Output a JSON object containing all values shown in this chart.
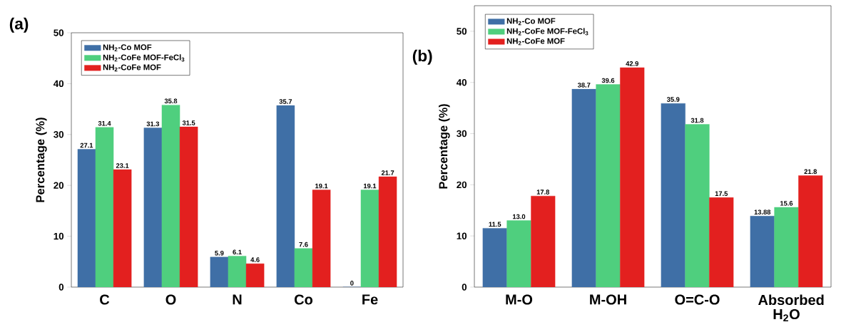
{
  "chart_data": [
    {
      "type": "bar",
      "title": "(a)",
      "ylabel": "Percentage (%)",
      "categories": [
        "C",
        "O",
        "N",
        "Co",
        "Fe"
      ],
      "series": [
        {
          "name": "NH$_{2}$-Co MOF",
          "color": "#3f6fa6",
          "values": [
            27.1,
            31.3,
            5.9,
            35.7,
            0
          ]
        },
        {
          "name": "NH$_{2}$-CoFe MOF-FeCl$_{3}$",
          "color": "#4fcf7e",
          "values": [
            31.4,
            35.8,
            6.1,
            7.6,
            19.1
          ]
        },
        {
          "name": "NH$_{2}$-CoFe MOF",
          "color": "#e3201f",
          "values": [
            23.1,
            31.5,
            4.6,
            19.1,
            21.7
          ]
        }
      ],
      "ylim": [
        0,
        50
      ],
      "yticks": [
        0,
        10,
        20,
        30,
        40,
        50
      ],
      "data_labels": true,
      "legend": "top left",
      "grid": false
    },
    {
      "type": "bar",
      "title": "(b)",
      "ylabel": "Percentage (%)",
      "categories": [
        "M-O",
        "M-OH",
        "O=C-O",
        "Absorbed H$_{2}$O"
      ],
      "series": [
        {
          "name": "NH$_{2}$-Co MOF",
          "color": "#3f6fa6",
          "values": [
            11.5,
            38.7,
            35.9,
            13.88
          ],
          "value_labels": [
            "11.5",
            "38.7",
            "35.9",
            "13.88"
          ]
        },
        {
          "name": "NH$_{2}$-CoFe MOF-FeCl$_{3}$",
          "color": "#4fcf7e",
          "values": [
            13.0,
            39.6,
            31.8,
            15.6
          ],
          "value_labels": [
            "13.0",
            "39.6",
            "31.8",
            "15.6"
          ]
        },
        {
          "name": "NH$_{2}$-CoFe MOF",
          "color": "#e3201f",
          "values": [
            17.8,
            42.9,
            17.5,
            21.8
          ],
          "value_labels": [
            "17.8",
            "42.9",
            "17.5",
            "21.8"
          ]
        }
      ],
      "ylim": [
        0,
        55
      ],
      "yticks": [
        0,
        10,
        20,
        30,
        40,
        50
      ],
      "legend": "top left",
      "grid": false
    }
  ]
}
